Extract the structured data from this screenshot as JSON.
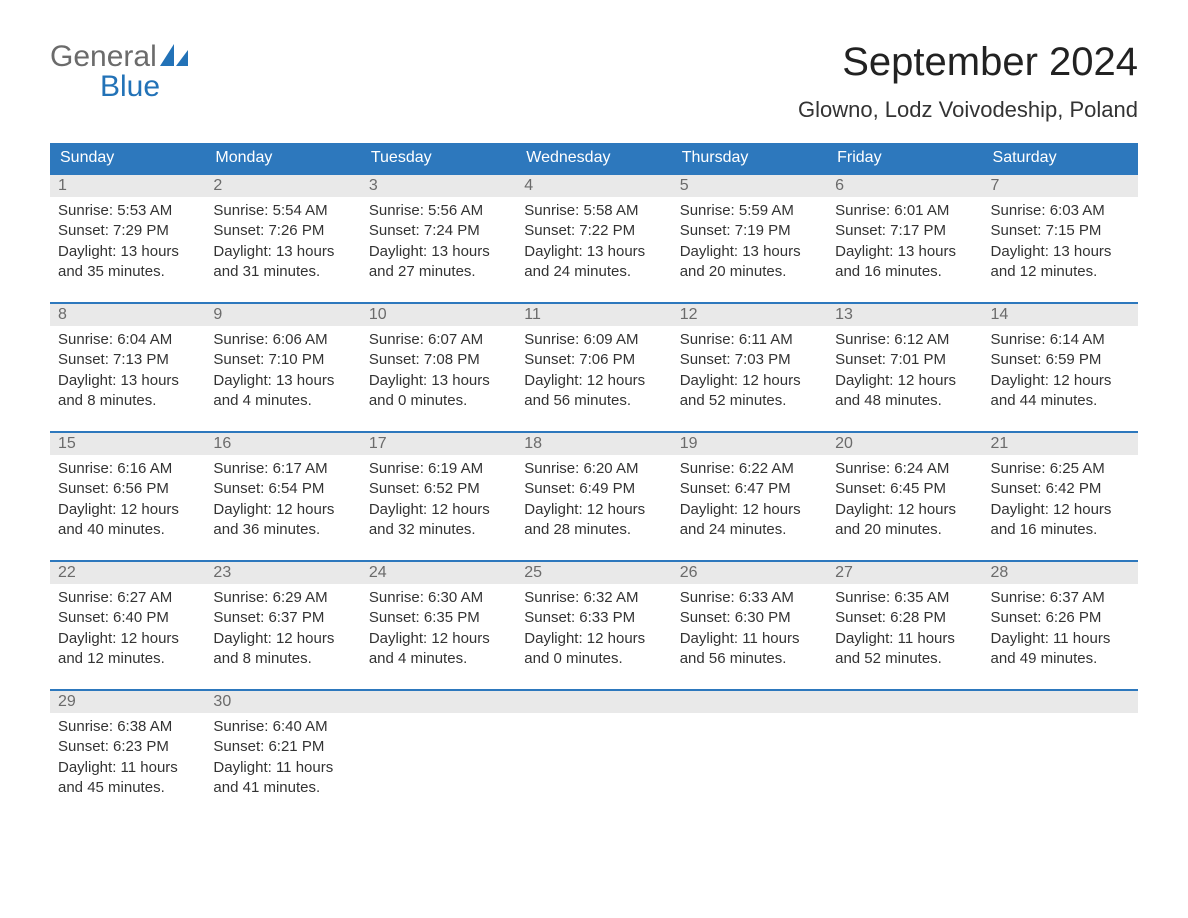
{
  "logo": {
    "text1": "General",
    "text2": "Blue"
  },
  "title": "September 2024",
  "location": "Glowno, Lodz Voivodeship, Poland",
  "columns": [
    "Sunday",
    "Monday",
    "Tuesday",
    "Wednesday",
    "Thursday",
    "Friday",
    "Saturday"
  ],
  "colors": {
    "header_bg": "#2d78bd",
    "header_text": "#ffffff",
    "daynum_bg": "#e9e9e9",
    "daynum_text": "#6b6b6b",
    "body_text": "#333333",
    "accent": "#2272b7",
    "border": "#2d78bd",
    "background": "#ffffff"
  },
  "fonts": {
    "title_size_pt": 30,
    "location_size_pt": 17,
    "header_size_pt": 12,
    "body_size_pt": 11
  },
  "structure": "calendar-table",
  "weeks": [
    [
      {
        "num": "1",
        "sunrise": "Sunrise: 5:53 AM",
        "sunset": "Sunset: 7:29 PM",
        "dl1": "Daylight: 13 hours",
        "dl2": "and 35 minutes."
      },
      {
        "num": "2",
        "sunrise": "Sunrise: 5:54 AM",
        "sunset": "Sunset: 7:26 PM",
        "dl1": "Daylight: 13 hours",
        "dl2": "and 31 minutes."
      },
      {
        "num": "3",
        "sunrise": "Sunrise: 5:56 AM",
        "sunset": "Sunset: 7:24 PM",
        "dl1": "Daylight: 13 hours",
        "dl2": "and 27 minutes."
      },
      {
        "num": "4",
        "sunrise": "Sunrise: 5:58 AM",
        "sunset": "Sunset: 7:22 PM",
        "dl1": "Daylight: 13 hours",
        "dl2": "and 24 minutes."
      },
      {
        "num": "5",
        "sunrise": "Sunrise: 5:59 AM",
        "sunset": "Sunset: 7:19 PM",
        "dl1": "Daylight: 13 hours",
        "dl2": "and 20 minutes."
      },
      {
        "num": "6",
        "sunrise": "Sunrise: 6:01 AM",
        "sunset": "Sunset: 7:17 PM",
        "dl1": "Daylight: 13 hours",
        "dl2": "and 16 minutes."
      },
      {
        "num": "7",
        "sunrise": "Sunrise: 6:03 AM",
        "sunset": "Sunset: 7:15 PM",
        "dl1": "Daylight: 13 hours",
        "dl2": "and 12 minutes."
      }
    ],
    [
      {
        "num": "8",
        "sunrise": "Sunrise: 6:04 AM",
        "sunset": "Sunset: 7:13 PM",
        "dl1": "Daylight: 13 hours",
        "dl2": "and 8 minutes."
      },
      {
        "num": "9",
        "sunrise": "Sunrise: 6:06 AM",
        "sunset": "Sunset: 7:10 PM",
        "dl1": "Daylight: 13 hours",
        "dl2": "and 4 minutes."
      },
      {
        "num": "10",
        "sunrise": "Sunrise: 6:07 AM",
        "sunset": "Sunset: 7:08 PM",
        "dl1": "Daylight: 13 hours",
        "dl2": "and 0 minutes."
      },
      {
        "num": "11",
        "sunrise": "Sunrise: 6:09 AM",
        "sunset": "Sunset: 7:06 PM",
        "dl1": "Daylight: 12 hours",
        "dl2": "and 56 minutes."
      },
      {
        "num": "12",
        "sunrise": "Sunrise: 6:11 AM",
        "sunset": "Sunset: 7:03 PM",
        "dl1": "Daylight: 12 hours",
        "dl2": "and 52 minutes."
      },
      {
        "num": "13",
        "sunrise": "Sunrise: 6:12 AM",
        "sunset": "Sunset: 7:01 PM",
        "dl1": "Daylight: 12 hours",
        "dl2": "and 48 minutes."
      },
      {
        "num": "14",
        "sunrise": "Sunrise: 6:14 AM",
        "sunset": "Sunset: 6:59 PM",
        "dl1": "Daylight: 12 hours",
        "dl2": "and 44 minutes."
      }
    ],
    [
      {
        "num": "15",
        "sunrise": "Sunrise: 6:16 AM",
        "sunset": "Sunset: 6:56 PM",
        "dl1": "Daylight: 12 hours",
        "dl2": "and 40 minutes."
      },
      {
        "num": "16",
        "sunrise": "Sunrise: 6:17 AM",
        "sunset": "Sunset: 6:54 PM",
        "dl1": "Daylight: 12 hours",
        "dl2": "and 36 minutes."
      },
      {
        "num": "17",
        "sunrise": "Sunrise: 6:19 AM",
        "sunset": "Sunset: 6:52 PM",
        "dl1": "Daylight: 12 hours",
        "dl2": "and 32 minutes."
      },
      {
        "num": "18",
        "sunrise": "Sunrise: 6:20 AM",
        "sunset": "Sunset: 6:49 PM",
        "dl1": "Daylight: 12 hours",
        "dl2": "and 28 minutes."
      },
      {
        "num": "19",
        "sunrise": "Sunrise: 6:22 AM",
        "sunset": "Sunset: 6:47 PM",
        "dl1": "Daylight: 12 hours",
        "dl2": "and 24 minutes."
      },
      {
        "num": "20",
        "sunrise": "Sunrise: 6:24 AM",
        "sunset": "Sunset: 6:45 PM",
        "dl1": "Daylight: 12 hours",
        "dl2": "and 20 minutes."
      },
      {
        "num": "21",
        "sunrise": "Sunrise: 6:25 AM",
        "sunset": "Sunset: 6:42 PM",
        "dl1": "Daylight: 12 hours",
        "dl2": "and 16 minutes."
      }
    ],
    [
      {
        "num": "22",
        "sunrise": "Sunrise: 6:27 AM",
        "sunset": "Sunset: 6:40 PM",
        "dl1": "Daylight: 12 hours",
        "dl2": "and 12 minutes."
      },
      {
        "num": "23",
        "sunrise": "Sunrise: 6:29 AM",
        "sunset": "Sunset: 6:37 PM",
        "dl1": "Daylight: 12 hours",
        "dl2": "and 8 minutes."
      },
      {
        "num": "24",
        "sunrise": "Sunrise: 6:30 AM",
        "sunset": "Sunset: 6:35 PM",
        "dl1": "Daylight: 12 hours",
        "dl2": "and 4 minutes."
      },
      {
        "num": "25",
        "sunrise": "Sunrise: 6:32 AM",
        "sunset": "Sunset: 6:33 PM",
        "dl1": "Daylight: 12 hours",
        "dl2": "and 0 minutes."
      },
      {
        "num": "26",
        "sunrise": "Sunrise: 6:33 AM",
        "sunset": "Sunset: 6:30 PM",
        "dl1": "Daylight: 11 hours",
        "dl2": "and 56 minutes."
      },
      {
        "num": "27",
        "sunrise": "Sunrise: 6:35 AM",
        "sunset": "Sunset: 6:28 PM",
        "dl1": "Daylight: 11 hours",
        "dl2": "and 52 minutes."
      },
      {
        "num": "28",
        "sunrise": "Sunrise: 6:37 AM",
        "sunset": "Sunset: 6:26 PM",
        "dl1": "Daylight: 11 hours",
        "dl2": "and 49 minutes."
      }
    ],
    [
      {
        "num": "29",
        "sunrise": "Sunrise: 6:38 AM",
        "sunset": "Sunset: 6:23 PM",
        "dl1": "Daylight: 11 hours",
        "dl2": "and 45 minutes."
      },
      {
        "num": "30",
        "sunrise": "Sunrise: 6:40 AM",
        "sunset": "Sunset: 6:21 PM",
        "dl1": "Daylight: 11 hours",
        "dl2": "and 41 minutes."
      },
      null,
      null,
      null,
      null,
      null
    ]
  ]
}
